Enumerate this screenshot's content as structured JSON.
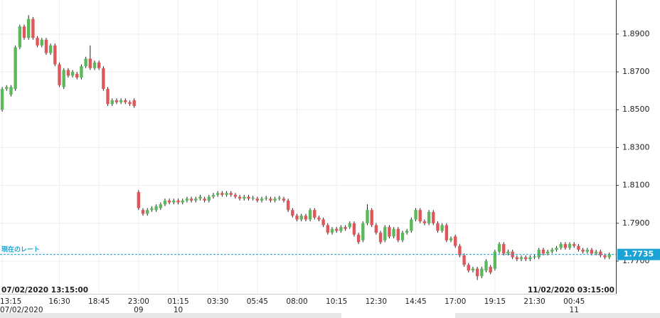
{
  "chart_data": {
    "type": "candlestick",
    "categories": [
      "13:15",
      null,
      null,
      null,
      null,
      null,
      null,
      null,
      null,
      null,
      null,
      null,
      null,
      "16:30",
      null,
      null,
      null,
      null,
      null,
      null,
      null,
      null,
      "18:45",
      null,
      null,
      null,
      null,
      null,
      null,
      null,
      null,
      "23:00",
      null,
      null,
      null,
      null,
      null,
      null,
      null,
      null,
      "01:15",
      null,
      null,
      null,
      null,
      null,
      null,
      null,
      null,
      "03:30",
      null,
      null,
      null,
      null,
      null,
      null,
      null,
      null,
      "05:45",
      null,
      null,
      null,
      null,
      null,
      null,
      null,
      null,
      "08:00",
      null,
      null,
      null,
      null,
      null,
      null,
      null,
      null,
      "10:15",
      null,
      null,
      null,
      null,
      null,
      null,
      null,
      null,
      "12:30",
      null,
      null,
      null,
      null,
      null,
      null,
      null,
      null,
      "14:45",
      null,
      null,
      null,
      null,
      null,
      null,
      null,
      null,
      "17:00",
      null,
      null,
      null,
      null,
      null,
      null,
      null,
      null,
      "19:15",
      null,
      null,
      null,
      null,
      null,
      null,
      null,
      null,
      "21:30",
      null,
      null,
      null,
      null,
      null,
      null,
      null,
      null,
      "00:45",
      null,
      null,
      null,
      null,
      null,
      null,
      null,
      null
    ],
    "dates": [
      "07/02/2020",
      null,
      null,
      null,
      null,
      null,
      null,
      null,
      null,
      null,
      null,
      null,
      null,
      null,
      null,
      null,
      null,
      null,
      null,
      null,
      null,
      null,
      null,
      null,
      null,
      null,
      null,
      null,
      null,
      null,
      null,
      "09",
      null,
      null,
      null,
      null,
      null,
      null,
      null,
      null,
      "10",
      null,
      null,
      null,
      null,
      null,
      null,
      null,
      null,
      null,
      null,
      null,
      null,
      null,
      null,
      null,
      null,
      null,
      null,
      null,
      null,
      null,
      null,
      null,
      null,
      null,
      null,
      null,
      null,
      null,
      null,
      null,
      null,
      null,
      null,
      null,
      null,
      null,
      null,
      null,
      null,
      null,
      null,
      null,
      null,
      null,
      null,
      null,
      null,
      null,
      null,
      null,
      null,
      null,
      null,
      null,
      null,
      null,
      null,
      null,
      null,
      null,
      null,
      null,
      null,
      null,
      null,
      null,
      null,
      null,
      null,
      null,
      null,
      null,
      null,
      null,
      null,
      null,
      null,
      null,
      null,
      null,
      null,
      null,
      null,
      null,
      null,
      null,
      null,
      null,
      "11",
      null,
      null,
      null,
      null,
      null,
      null,
      null,
      null
    ],
    "open": [
      1.85,
      1.861,
      1.858,
      1.861,
      1.883,
      1.894,
      1.888,
      1.898,
      1.888,
      1.884,
      1.887,
      1.88,
      1.884,
      1.874,
      1.862,
      1.871,
      1.868,
      1.869,
      1.867,
      1.873,
      1.877,
      1.872,
      1.875,
      1.872,
      1.861,
      1.853,
      1.855,
      1.854,
      1.855,
      1.854,
      1.855,
      1.8065,
      1.797,
      1.795,
      1.797,
      1.797,
      1.798,
      1.8,
      1.802,
      1.801,
      1.802,
      1.801,
      1.802,
      1.803,
      1.802,
      1.803,
      1.803,
      1.802,
      1.804,
      1.805,
      1.806,
      1.805,
      1.806,
      1.805,
      1.804,
      1.803,
      1.804,
      1.803,
      1.803,
      1.802,
      1.803,
      1.803,
      1.802,
      1.803,
      1.803,
      1.802,
      1.797,
      1.794,
      1.792,
      1.794,
      1.792,
      1.797,
      1.793,
      1.792,
      1.789,
      1.785,
      1.787,
      1.786,
      1.788,
      1.788,
      1.79,
      1.784,
      1.781,
      1.79,
      1.797,
      1.789,
      1.785,
      1.781,
      1.788,
      1.783,
      1.787,
      1.781,
      1.785,
      1.786,
      1.792,
      1.797,
      1.791,
      1.79,
      1.796,
      1.79,
      1.786,
      1.789,
      1.781,
      1.783,
      1.778,
      1.773,
      1.768,
      1.765,
      1.766,
      1.762,
      1.765,
      1.767,
      1.766,
      1.775,
      1.779,
      1.774,
      1.775,
      1.772,
      1.771,
      1.772,
      1.771,
      1.772,
      1.772,
      1.776,
      1.774,
      1.775,
      1.776,
      1.777,
      1.779,
      1.777,
      1.779,
      1.778,
      1.776,
      1.775,
      1.776,
      1.774,
      1.775,
      1.773,
      1.772
    ],
    "high": [
      1.862,
      1.863,
      1.863,
      1.884,
      1.895,
      1.895,
      1.9,
      1.899,
      1.889,
      1.888,
      1.888,
      1.885,
      1.885,
      1.875,
      1.872,
      1.872,
      1.871,
      1.87,
      1.874,
      1.878,
      1.884,
      1.876,
      1.876,
      1.873,
      1.862,
      1.856,
      1.856,
      1.856,
      1.856,
      1.855,
      1.856,
      1.8075,
      1.798,
      1.798,
      1.799,
      1.8,
      1.801,
      1.803,
      1.803,
      1.803,
      1.803,
      1.803,
      1.804,
      1.804,
      1.804,
      1.805,
      1.804,
      1.805,
      1.806,
      1.807,
      1.807,
      1.807,
      1.807,
      1.806,
      1.805,
      1.805,
      1.805,
      1.8045,
      1.804,
      1.804,
      1.8045,
      1.804,
      1.804,
      1.8045,
      1.804,
      1.803,
      1.798,
      1.795,
      1.795,
      1.795,
      1.798,
      1.798,
      1.794,
      1.793,
      1.79,
      1.788,
      1.788,
      1.789,
      1.789,
      1.791,
      1.791,
      1.785,
      1.791,
      1.8,
      1.798,
      1.79,
      1.786,
      1.789,
      1.789,
      1.788,
      1.788,
      1.786,
      1.787,
      1.793,
      1.798,
      1.798,
      1.792,
      1.797,
      1.797,
      1.791,
      1.79,
      1.79,
      1.783,
      1.784,
      1.779,
      1.774,
      1.769,
      1.767,
      1.767,
      1.767,
      1.771,
      1.768,
      1.776,
      1.78,
      1.78,
      1.776,
      1.776,
      1.773,
      1.773,
      1.773,
      1.773,
      1.7735,
      1.777,
      1.777,
      1.776,
      1.777,
      1.778,
      1.78,
      1.78,
      1.78,
      1.78,
      1.779,
      1.777,
      1.777,
      1.777,
      1.776,
      1.776,
      1.774,
      1.7745
    ],
    "low": [
      1.849,
      1.86,
      1.857,
      1.86,
      1.882,
      1.887,
      1.887,
      1.887,
      1.883,
      1.883,
      1.879,
      1.879,
      1.873,
      1.862,
      1.861,
      1.867,
      1.867,
      1.866,
      1.866,
      1.872,
      1.871,
      1.871,
      1.871,
      1.86,
      1.852,
      1.852,
      1.853,
      1.853,
      1.853,
      1.852,
      1.851,
      1.797,
      1.794,
      1.794,
      1.796,
      1.796,
      1.797,
      1.799,
      1.8,
      1.8,
      1.8,
      1.8,
      1.801,
      1.801,
      1.801,
      1.802,
      1.801,
      1.801,
      1.803,
      1.804,
      1.804,
      1.804,
      1.804,
      1.803,
      1.802,
      1.802,
      1.802,
      1.802,
      1.801,
      1.801,
      1.802,
      1.801,
      1.801,
      1.802,
      1.801,
      1.796,
      1.793,
      1.791,
      1.791,
      1.791,
      1.791,
      1.792,
      1.791,
      1.788,
      1.784,
      1.784,
      1.785,
      1.785,
      1.786,
      1.787,
      1.783,
      1.779,
      1.78,
      1.789,
      1.788,
      1.784,
      1.779,
      1.78,
      1.782,
      1.782,
      1.78,
      1.78,
      1.784,
      1.785,
      1.791,
      1.79,
      1.789,
      1.789,
      1.789,
      1.785,
      1.785,
      1.78,
      1.78,
      1.777,
      1.772,
      1.767,
      1.764,
      1.764,
      1.76,
      1.761,
      1.764,
      1.763,
      1.765,
      1.774,
      1.773,
      1.773,
      1.771,
      1.77,
      1.77,
      1.77,
      1.77,
      1.771,
      1.771,
      1.773,
      1.773,
      1.774,
      1.775,
      1.776,
      1.776,
      1.776,
      1.777,
      1.775,
      1.774,
      1.774,
      1.773,
      1.773,
      1.772,
      1.771,
      1.771
    ],
    "close": [
      1.861,
      1.862,
      1.862,
      1.883,
      1.894,
      1.888,
      1.898,
      1.888,
      1.884,
      1.887,
      1.88,
      1.884,
      1.874,
      1.863,
      1.871,
      1.868,
      1.87,
      1.867,
      1.873,
      1.877,
      1.872,
      1.875,
      1.872,
      1.861,
      1.853,
      1.855,
      1.854,
      1.855,
      1.854,
      1.853,
      1.852,
      1.798,
      1.795,
      1.797,
      1.798,
      1.799,
      1.8,
      1.802,
      1.801,
      1.802,
      1.801,
      1.802,
      1.803,
      1.802,
      1.803,
      1.804,
      1.802,
      1.804,
      1.805,
      1.806,
      1.805,
      1.806,
      1.805,
      1.804,
      1.803,
      1.804,
      1.803,
      1.8035,
      1.802,
      1.803,
      1.8035,
      1.802,
      1.803,
      1.8035,
      1.802,
      1.797,
      1.794,
      1.792,
      1.794,
      1.792,
      1.797,
      1.793,
      1.792,
      1.789,
      1.785,
      1.787,
      1.786,
      1.788,
      1.787,
      1.79,
      1.784,
      1.78,
      1.79,
      1.797,
      1.789,
      1.785,
      1.78,
      1.788,
      1.783,
      1.787,
      1.781,
      1.785,
      1.786,
      1.792,
      1.797,
      1.791,
      1.79,
      1.796,
      1.79,
      1.786,
      1.789,
      1.781,
      1.782,
      1.778,
      1.773,
      1.768,
      1.765,
      1.766,
      1.762,
      1.766,
      1.77,
      1.764,
      1.775,
      1.779,
      1.774,
      1.775,
      1.772,
      1.771,
      1.772,
      1.771,
      1.772,
      1.7725,
      1.776,
      1.774,
      1.775,
      1.776,
      1.777,
      1.779,
      1.777,
      1.779,
      1.778,
      1.776,
      1.775,
      1.776,
      1.774,
      1.775,
      1.773,
      1.772,
      1.7735
    ],
    "up_color": "#5cb85c",
    "down_color": "#e0575b",
    "ylim": [
      1.7527,
      1.908
    ],
    "yticks": [
      {
        "value": 1.89,
        "label": "1.8900"
      },
      {
        "value": 1.87,
        "label": "1.8700"
      },
      {
        "value": 1.85,
        "label": "1.8500"
      },
      {
        "value": 1.83,
        "label": "1.8300"
      },
      {
        "value": 1.81,
        "label": "1.8100"
      },
      {
        "value": 1.79,
        "label": "1.7900"
      },
      {
        "value": 1.77,
        "label": "1.7700"
      }
    ],
    "grid": true,
    "current_rate": 1.7735,
    "current_rate_label": "現在のレート",
    "current_rate_color": "#1aa3d4",
    "range_start": "07/02/2020 13:15:00",
    "range_end": "11/02/2020 03:15:00"
  }
}
